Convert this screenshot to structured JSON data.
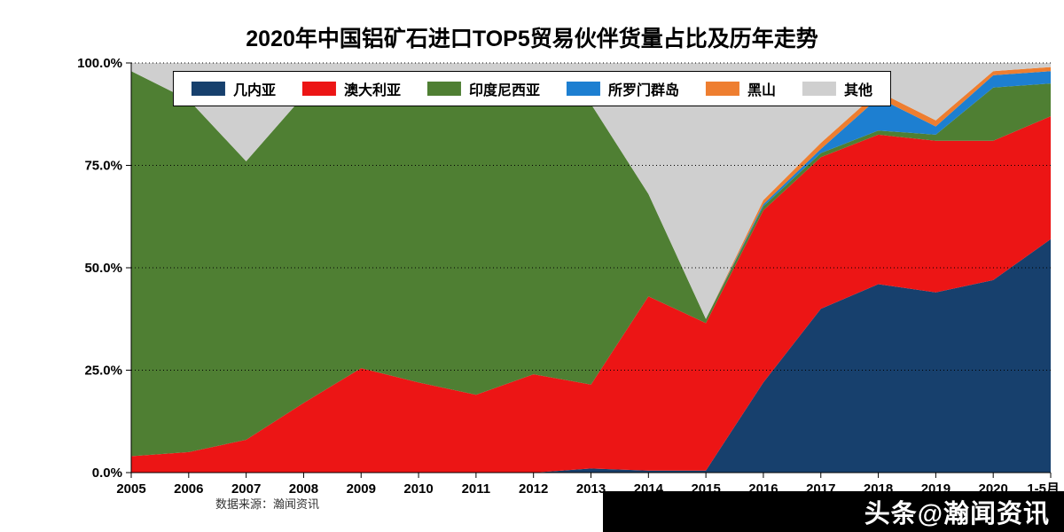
{
  "title": "2020年中国铝矿石进口TOP5贸易伙伴货量占比及历年走势",
  "source_note": "数据来源：瀚闻资讯",
  "watermark": "头条@瀚闻资讯",
  "chart_data": {
    "type": "area",
    "stacked": true,
    "unit": "percent",
    "title": "2020年中国铝矿石进口TOP5贸易伙伴货量占比及历年走势",
    "x": [
      "2005",
      "2006",
      "2007",
      "2008",
      "2009",
      "2010",
      "2011",
      "2012",
      "2013",
      "2014",
      "2015",
      "2016",
      "2017",
      "2018",
      "2019",
      "2020",
      "1-5月"
    ],
    "series": [
      {
        "id": "guinea",
        "name": "几内亚",
        "color": "#17406d",
        "values": [
          0,
          0,
          0,
          0,
          0,
          0,
          0,
          0,
          1,
          0.5,
          0.5,
          22,
          40,
          46,
          44,
          47,
          57
        ]
      },
      {
        "id": "australia",
        "name": "澳大利亚",
        "color": "#ec1515",
        "values": [
          4,
          5,
          8,
          17,
          25.5,
          22,
          19,
          24,
          20.5,
          42.5,
          36,
          42,
          37,
          36.5,
          37,
          34,
          30
        ]
      },
      {
        "id": "indonesia",
        "name": "印度尼西亚",
        "color": "#4f7f33",
        "values": [
          94,
          86,
          68,
          75,
          71,
          74,
          76,
          69,
          68.5,
          25,
          1,
          1,
          1,
          1,
          1.5,
          13,
          8
        ]
      },
      {
        "id": "solomon-islands",
        "name": "所罗门群岛",
        "color": "#1d7fd1",
        "values": [
          0,
          0,
          0,
          0,
          0,
          0,
          0,
          0,
          0,
          0,
          0,
          0.5,
          1,
          8,
          2,
          3,
          3
        ]
      },
      {
        "id": "montenegro",
        "name": "黑山",
        "color": "#ee7e30",
        "values": [
          0,
          0,
          0,
          0,
          0,
          0,
          0,
          0,
          0,
          0,
          0,
          1,
          1.5,
          1.5,
          1.5,
          1,
          1
        ]
      },
      {
        "id": "other",
        "name": "其他",
        "color": "#cfcfcf",
        "values": [
          2,
          9,
          24,
          8,
          3.5,
          4,
          5,
          7,
          10,
          32,
          62.5,
          33.5,
          19.5,
          7,
          14,
          2,
          1
        ]
      }
    ],
    "y_ticks": [
      "0.0%",
      "25.0%",
      "50.0%",
      "75.0%",
      "100.0%"
    ],
    "ylim": [
      0,
      100
    ],
    "grid": "dotted-horizontal",
    "legend_position": "top-center"
  }
}
